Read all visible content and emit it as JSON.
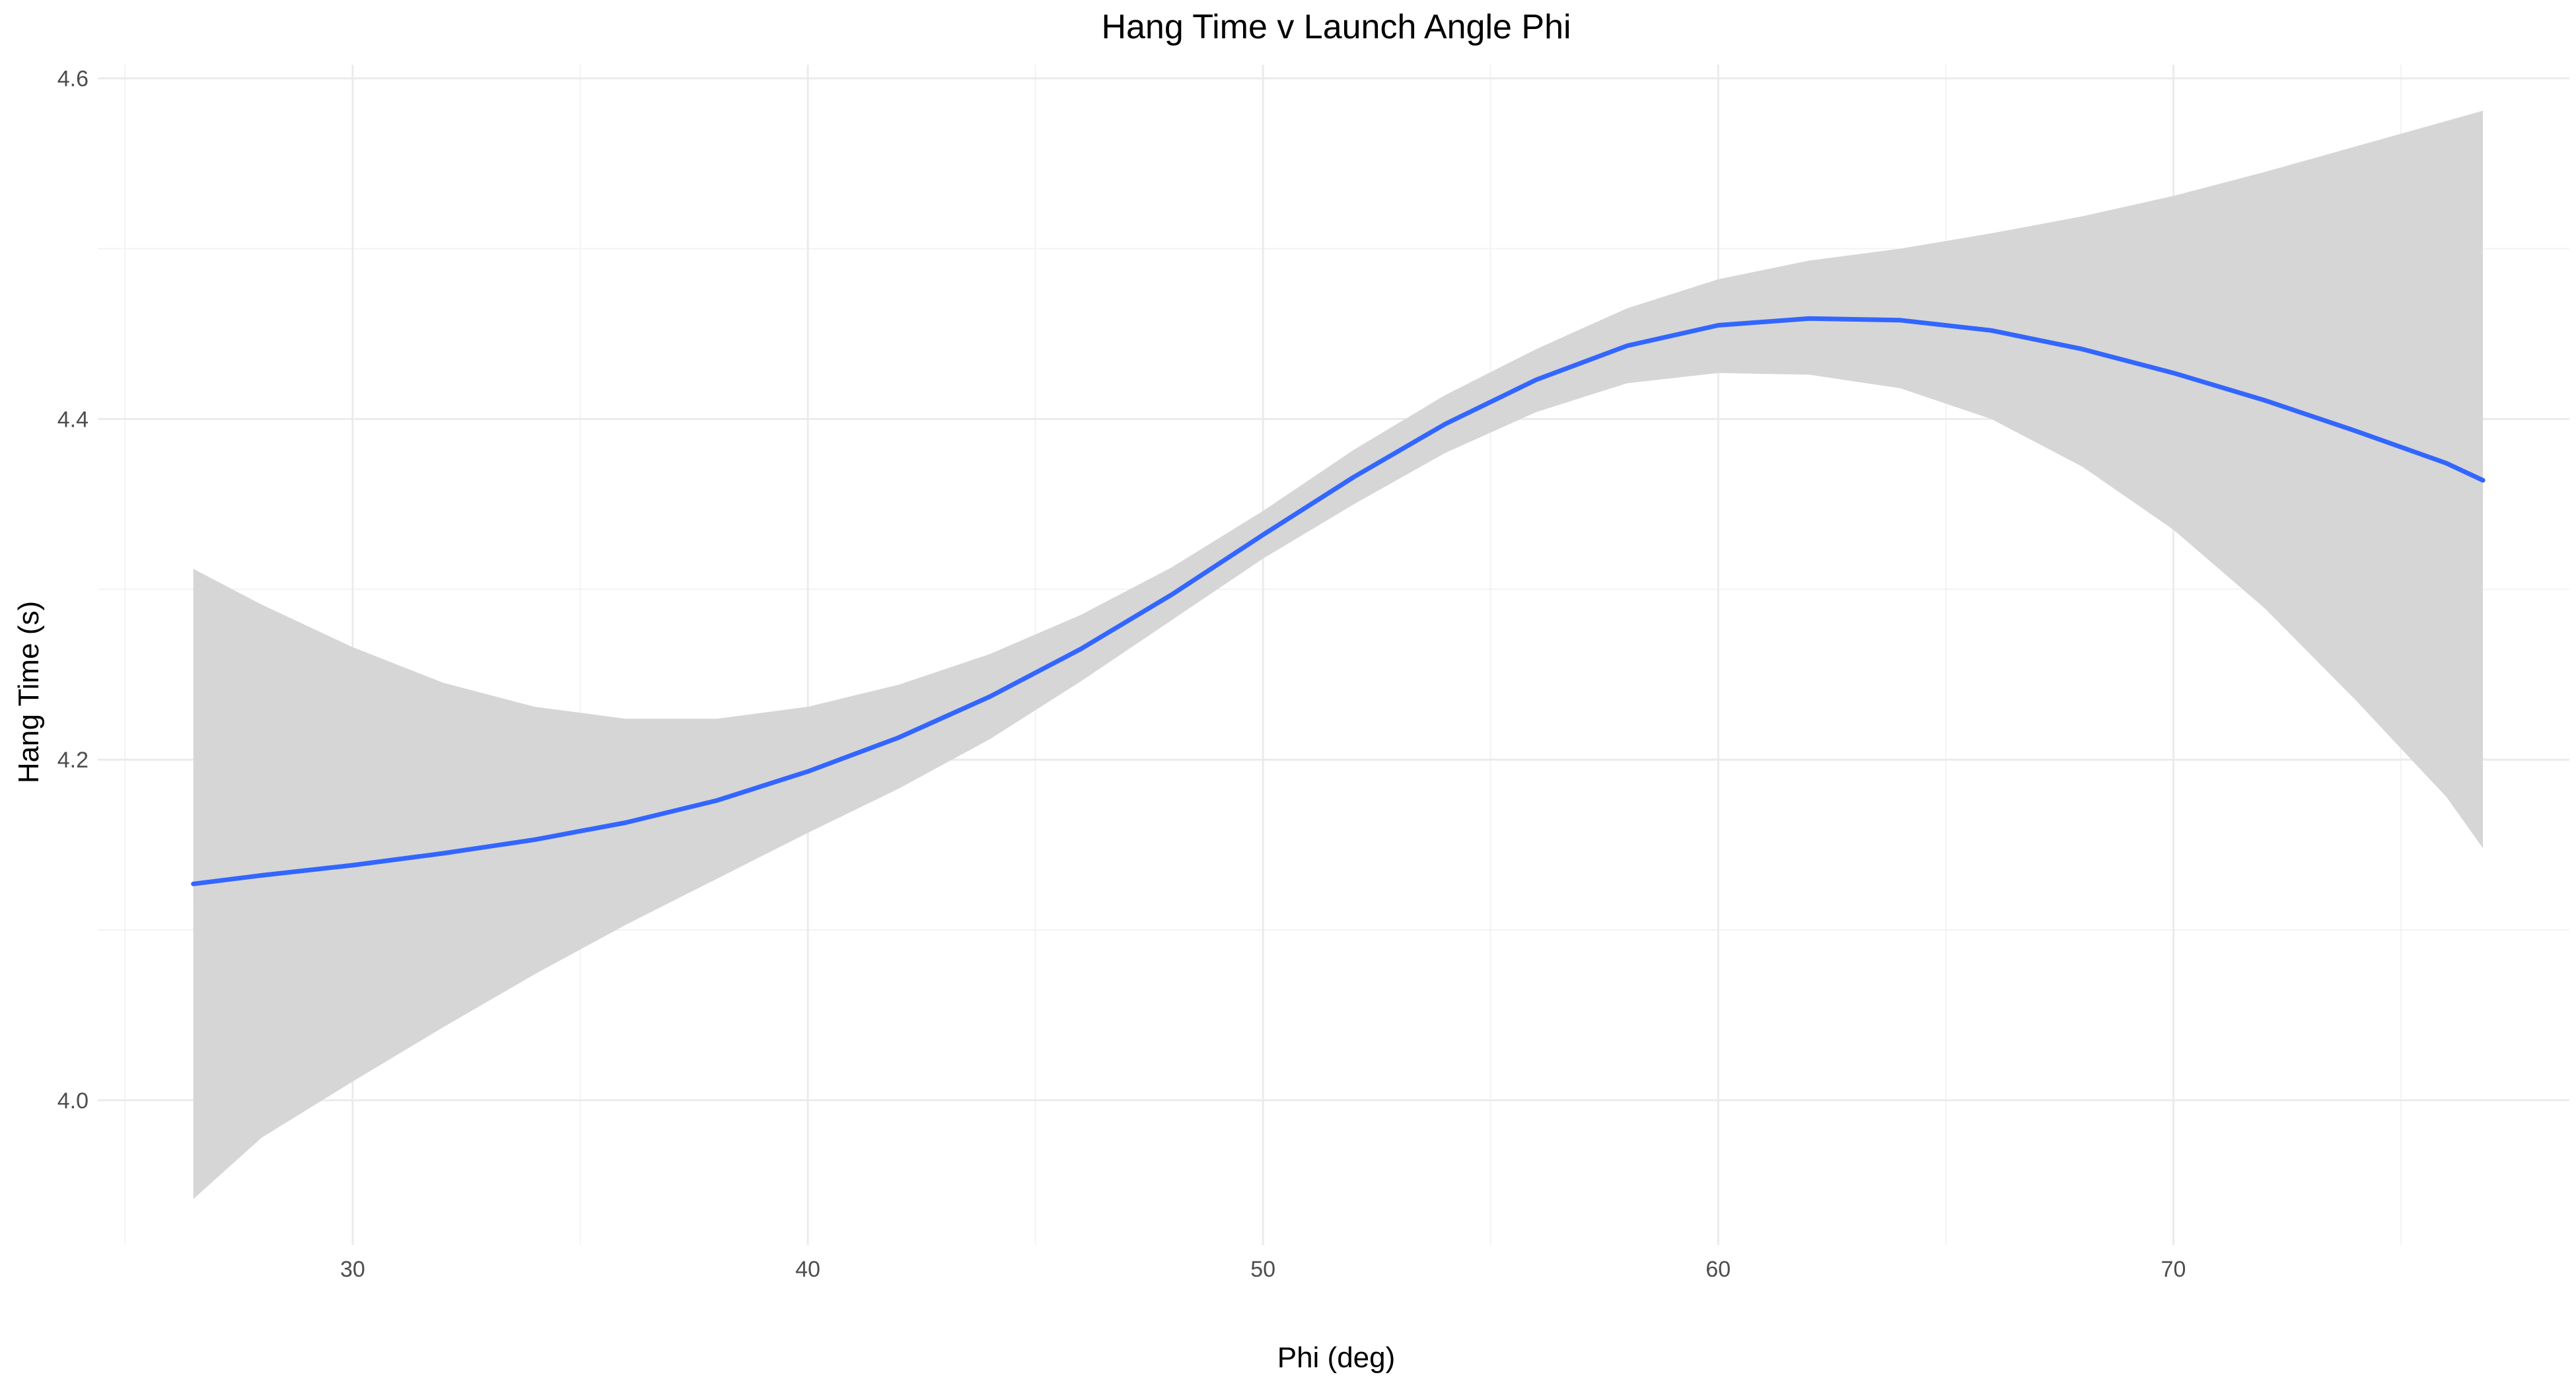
{
  "chart_data": {
    "type": "line",
    "title": "Hang Time v Launch Angle Phi",
    "xlabel": "Phi (deg)",
    "ylabel": "Hang Time (s)",
    "xlim": [
      24.4,
      78.7
    ],
    "ylim": [
      3.915,
      4.608
    ],
    "x_ticks": [
      30,
      40,
      50,
      60,
      70
    ],
    "x_tick_labels": [
      "30",
      "40",
      "50",
      "60",
      "70"
    ],
    "x_minor_ticks": [
      25,
      35,
      45,
      55,
      65,
      75
    ],
    "y_ticks": [
      4.0,
      4.2,
      4.4,
      4.6
    ],
    "y_tick_labels": [
      "4.0",
      "4.2",
      "4.4",
      "4.6"
    ],
    "y_minor_ticks": [
      4.1,
      4.3,
      4.5
    ],
    "grid": true,
    "legend": "none",
    "colors": {
      "line": "#3366ff",
      "ribbon": "#d6d6d6"
    },
    "series": [
      {
        "x": [
          26.5,
          28,
          30,
          32,
          34,
          36,
          38,
          40,
          42,
          44,
          46,
          48,
          50,
          52,
          54,
          56,
          58,
          60,
          62,
          64,
          66,
          68,
          70,
          72,
          74,
          76,
          76.8
        ],
        "y": [
          4.127,
          4.132,
          4.138,
          4.145,
          4.153,
          4.163,
          4.176,
          4.193,
          4.213,
          4.237,
          4.265,
          4.297,
          4.332,
          4.366,
          4.397,
          4.423,
          4.443,
          4.455,
          4.459,
          4.458,
          4.452,
          4.441,
          4.427,
          4.411,
          4.393,
          4.374,
          4.364
        ],
        "ymin": [
          3.942,
          3.978,
          4.011,
          4.043,
          4.074,
          4.103,
          4.13,
          4.157,
          4.183,
          4.212,
          4.246,
          4.282,
          4.318,
          4.35,
          4.38,
          4.404,
          4.421,
          4.427,
          4.426,
          4.418,
          4.4,
          4.372,
          4.335,
          4.289,
          4.235,
          4.178,
          4.148
        ],
        "ymax": [
          4.312,
          4.291,
          4.266,
          4.245,
          4.231,
          4.224,
          4.224,
          4.231,
          4.244,
          4.262,
          4.285,
          4.313,
          4.346,
          4.382,
          4.414,
          4.441,
          4.465,
          4.482,
          4.493,
          4.5,
          4.509,
          4.519,
          4.531,
          4.545,
          4.56,
          4.575,
          4.581
        ]
      }
    ]
  }
}
